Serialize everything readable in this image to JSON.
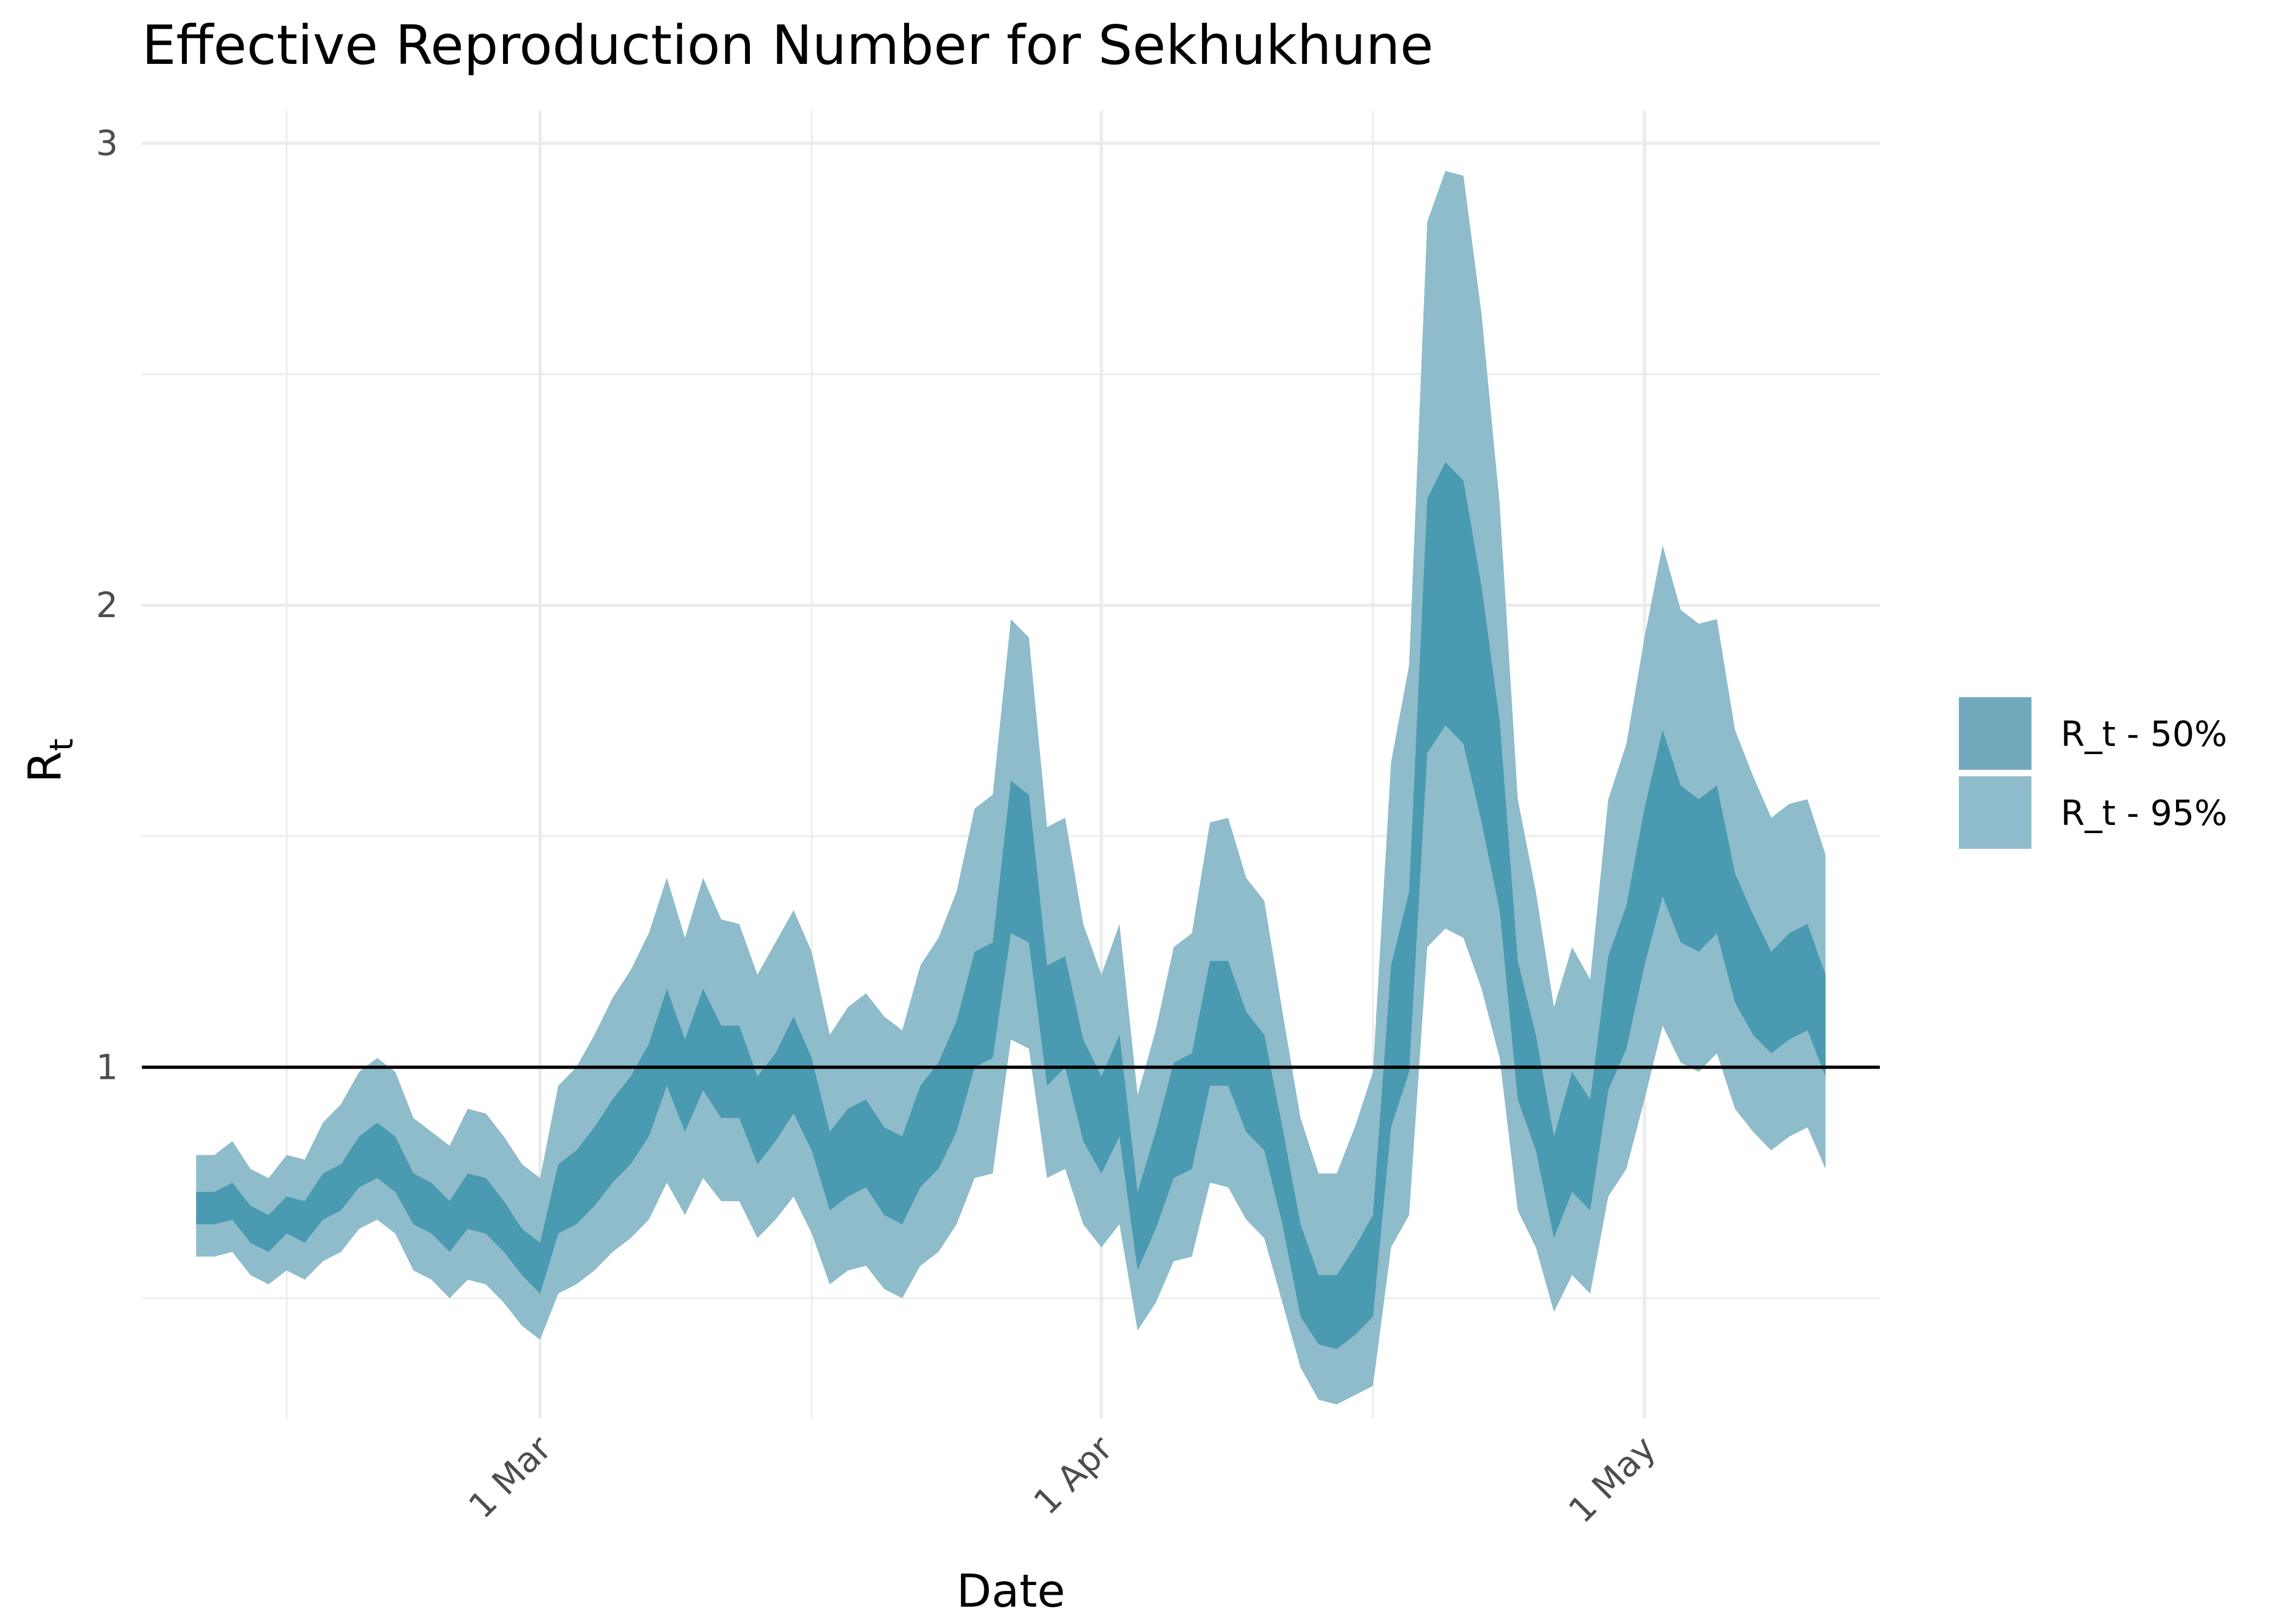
{
  "chart_data": {
    "type": "area",
    "title": "Effective Reproduction Number for Sekhukhune",
    "xlabel": "Date",
    "ylabel": {
      "base": "R",
      "subscript": "t"
    },
    "x_ticks": [
      {
        "date": "2021-03-01",
        "label": "1 Mar"
      },
      {
        "date": "2021-04-01",
        "label": "1 Apr"
      },
      {
        "date": "2021-05-01",
        "label": "1 May"
      }
    ],
    "x_minor_dates": [
      "2021-02-15",
      "2021-03-16",
      "2021-04-16"
    ],
    "y_ticks": [
      1,
      2,
      3
    ],
    "y_minor": [
      0.5,
      1.5,
      2.5
    ],
    "xlim": [
      "2021-02-07",
      "2021-05-14"
    ],
    "ylim": [
      0.24,
      3.07
    ],
    "reference_line": {
      "y": 1,
      "color": "#000000"
    },
    "grid": true,
    "legend_position": "right",
    "colors": {
      "band_50": "#4a9ab1",
      "band_95": "#8ebcca",
      "grid": "#ebebeb"
    },
    "series": [
      {
        "name": "R_t - 50%",
        "color": "#72a8bb"
      },
      {
        "name": "R_t - 95%",
        "color": "#8ebcca"
      }
    ],
    "start_date": "2021-02-10",
    "bands": {
      "lower_95": [
        0.59,
        0.59,
        0.6,
        0.55,
        0.53,
        0.56,
        0.54,
        0.58,
        0.6,
        0.65,
        0.67,
        0.64,
        0.56,
        0.54,
        0.5,
        0.54,
        0.53,
        0.49,
        0.44,
        0.41,
        0.51,
        0.53,
        0.56,
        0.6,
        0.63,
        0.67,
        0.75,
        0.68,
        0.76,
        0.71,
        0.71,
        0.63,
        0.67,
        0.72,
        0.64,
        0.53,
        0.56,
        0.57,
        0.52,
        0.5,
        0.57,
        0.6,
        0.66,
        0.76,
        0.77,
        1.06,
        1.04,
        0.76,
        0.78,
        0.66,
        0.61,
        0.66,
        0.43,
        0.49,
        0.58,
        0.59,
        0.75,
        0.74,
        0.67,
        0.63,
        0.49,
        0.35,
        0.28,
        0.27,
        0.29,
        0.31,
        0.61,
        0.68,
        1.26,
        1.3,
        1.28,
        1.17,
        1.02,
        0.69,
        0.61,
        0.47,
        0.55,
        0.51,
        0.72,
        0.78,
        0.93,
        1.09,
        1.01,
        0.99,
        1.03,
        0.91,
        0.86,
        0.82,
        0.85,
        0.87,
        0.78
      ],
      "lower_50": [
        0.66,
        0.66,
        0.67,
        0.62,
        0.6,
        0.64,
        0.62,
        0.67,
        0.69,
        0.74,
        0.76,
        0.73,
        0.66,
        0.64,
        0.6,
        0.65,
        0.64,
        0.6,
        0.55,
        0.51,
        0.64,
        0.66,
        0.7,
        0.75,
        0.79,
        0.85,
        0.96,
        0.86,
        0.95,
        0.89,
        0.89,
        0.79,
        0.84,
        0.9,
        0.82,
        0.69,
        0.72,
        0.74,
        0.68,
        0.66,
        0.74,
        0.78,
        0.86,
        1.0,
        1.02,
        1.29,
        1.27,
        0.96,
        1.0,
        0.84,
        0.77,
        0.85,
        0.56,
        0.65,
        0.76,
        0.78,
        0.96,
        0.96,
        0.86,
        0.82,
        0.66,
        0.46,
        0.4,
        0.39,
        0.42,
        0.46,
        0.87,
        0.99,
        1.68,
        1.74,
        1.7,
        1.53,
        1.34,
        0.93,
        0.82,
        0.63,
        0.73,
        0.69,
        0.95,
        1.04,
        1.22,
        1.37,
        1.27,
        1.25,
        1.29,
        1.14,
        1.07,
        1.03,
        1.06,
        1.08,
        0.98
      ],
      "upper_50": [
        0.73,
        0.73,
        0.75,
        0.7,
        0.68,
        0.72,
        0.71,
        0.77,
        0.79,
        0.85,
        0.88,
        0.85,
        0.77,
        0.75,
        0.71,
        0.77,
        0.76,
        0.71,
        0.65,
        0.62,
        0.79,
        0.82,
        0.87,
        0.93,
        0.98,
        1.05,
        1.17,
        1.06,
        1.17,
        1.09,
        1.09,
        0.98,
        1.03,
        1.11,
        1.02,
        0.86,
        0.91,
        0.93,
        0.87,
        0.85,
        0.96,
        1.01,
        1.1,
        1.25,
        1.27,
        1.62,
        1.59,
        1.22,
        1.24,
        1.06,
        0.98,
        1.07,
        0.73,
        0.86,
        1.01,
        1.03,
        1.23,
        1.23,
        1.12,
        1.07,
        0.87,
        0.66,
        0.55,
        0.55,
        0.61,
        0.68,
        1.22,
        1.38,
        2.23,
        2.31,
        2.27,
        2.04,
        1.75,
        1.23,
        1.07,
        0.85,
        0.99,
        0.93,
        1.24,
        1.35,
        1.56,
        1.73,
        1.61,
        1.58,
        1.61,
        1.42,
        1.33,
        1.25,
        1.29,
        1.31,
        1.2
      ],
      "upper_95": [
        0.81,
        0.81,
        0.84,
        0.78,
        0.76,
        0.81,
        0.8,
        0.88,
        0.92,
        0.99,
        1.02,
        0.99,
        0.89,
        0.86,
        0.83,
        0.91,
        0.9,
        0.85,
        0.79,
        0.76,
        0.96,
        1.0,
        1.07,
        1.15,
        1.21,
        1.29,
        1.41,
        1.28,
        1.41,
        1.32,
        1.31,
        1.2,
        1.27,
        1.34,
        1.25,
        1.07,
        1.13,
        1.16,
        1.11,
        1.08,
        1.22,
        1.28,
        1.38,
        1.56,
        1.59,
        1.97,
        1.93,
        1.52,
        1.54,
        1.31,
        1.2,
        1.31,
        0.94,
        1.08,
        1.26,
        1.29,
        1.53,
        1.54,
        1.41,
        1.36,
        1.12,
        0.89,
        0.77,
        0.77,
        0.87,
        0.99,
        1.66,
        1.87,
        2.83,
        2.94,
        2.93,
        2.63,
        2.22,
        1.58,
        1.38,
        1.13,
        1.26,
        1.19,
        1.58,
        1.7,
        1.93,
        2.13,
        1.99,
        1.96,
        1.97,
        1.73,
        1.63,
        1.54,
        1.57,
        1.58,
        1.46
      ]
    }
  }
}
